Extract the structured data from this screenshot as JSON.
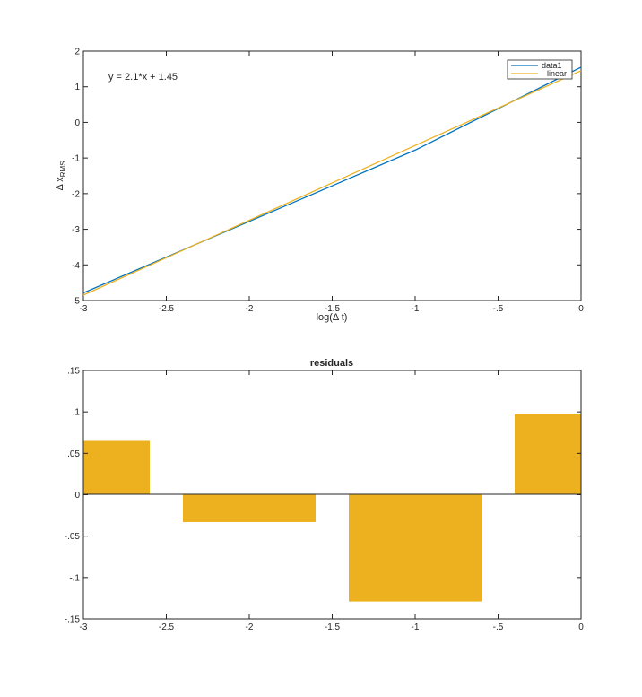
{
  "colors": {
    "data1": "#0072BD",
    "linear": "#EDB120",
    "bar": "#EDB120",
    "axis": "#262626"
  },
  "top": {
    "annotation": "y = 2.1*x + 1.45",
    "ylabel_main": "Δ x",
    "ylabel_sub": "RMS",
    "xlabel": "log(Δ t)",
    "legend": {
      "data1": "data1",
      "linear": "linear"
    }
  },
  "bottom": {
    "title": "residuals"
  },
  "chart_data": [
    {
      "type": "line",
      "title": "",
      "xlabel": "log(Δ t)",
      "ylabel": "Δ x_RMS",
      "xlim": [
        -3,
        0
      ],
      "ylim": [
        -5,
        2
      ],
      "xticks": [
        -3,
        -2.5,
        -2,
        -1.5,
        -1,
        -0.5,
        0
      ],
      "yticks": [
        -5,
        -4,
        -3,
        -2,
        -1,
        0,
        1,
        2
      ],
      "legend_position": "top-right",
      "annotation": "y = 2.1*x + 1.45",
      "series": [
        {
          "name": "data1",
          "x": [
            -3,
            -2,
            -1,
            0
          ],
          "y": [
            -4.785,
            -2.78,
            -0.78,
            1.55
          ]
        },
        {
          "name": "linear",
          "x": [
            -3,
            0
          ],
          "y": [
            -4.85,
            1.45
          ]
        }
      ]
    },
    {
      "type": "bar",
      "title": "residuals",
      "xlim": [
        -3,
        0
      ],
      "ylim": [
        -0.15,
        0.15
      ],
      "xticks": [
        -3,
        -2.5,
        -2,
        -1.5,
        -1,
        -0.5,
        0
      ],
      "yticks": [
        -0.15,
        -0.1,
        -0.05,
        0,
        0.05,
        0.1,
        0.15
      ],
      "bar_width": 0.8,
      "x": [
        -3,
        -2,
        -1,
        0
      ],
      "values": [
        0.065,
        -0.033,
        -0.129,
        0.097
      ]
    }
  ]
}
